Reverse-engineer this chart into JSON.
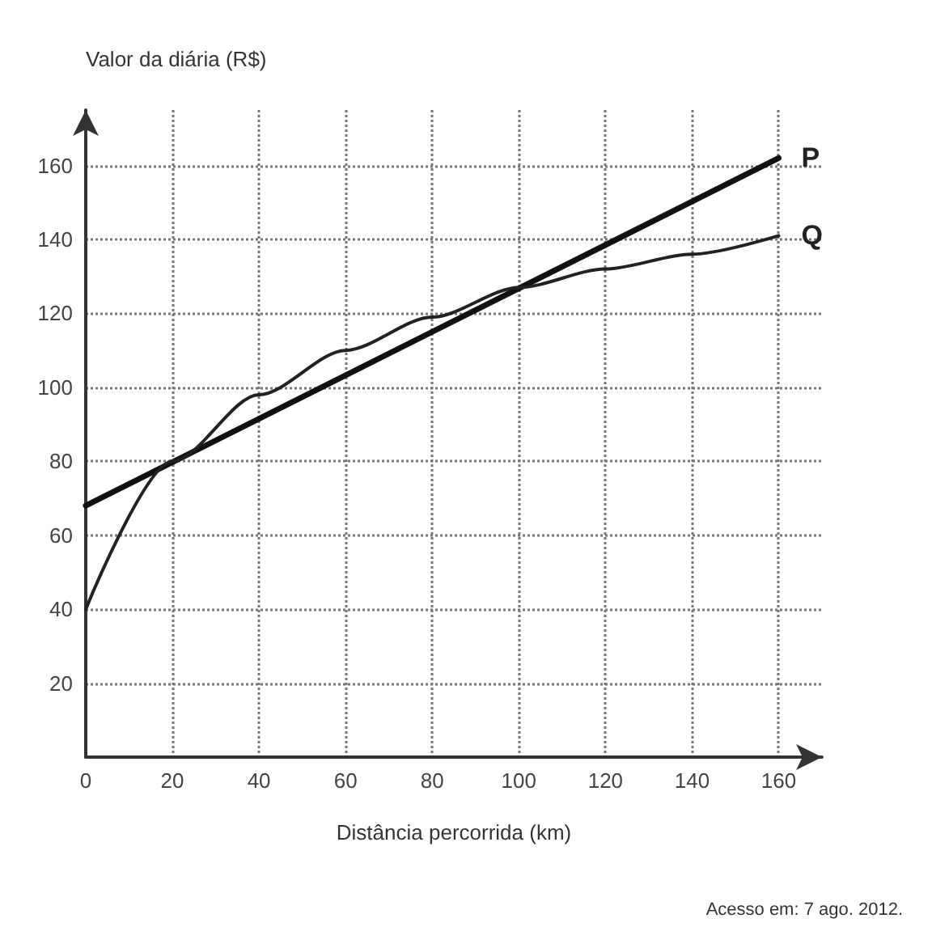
{
  "chart_data": {
    "type": "line",
    "ylabel": "Valor da diária (R$)",
    "xlabel": "Distância percorrida (km)",
    "annotations": [
      "Acesso em: 7 ago. 2012."
    ],
    "x": [
      0,
      20,
      40,
      60,
      80,
      100,
      120,
      140,
      160
    ],
    "series": [
      {
        "name": "P",
        "color": "#111111",
        "x": [
          0,
          160
        ],
        "values": [
          68,
          162
        ]
      },
      {
        "name": "Q",
        "color": "#222222",
        "values": [
          40,
          80,
          98,
          110,
          119,
          127,
          132,
          136,
          141
        ]
      }
    ],
    "xlim": [
      0,
      170
    ],
    "ylim": [
      0,
      175
    ],
    "xticks": [
      0,
      20,
      40,
      60,
      80,
      100,
      120,
      140,
      160
    ],
    "yticks": [
      20,
      40,
      60,
      80,
      100,
      120,
      140,
      160
    ],
    "grid": true,
    "legend": false,
    "marker": "none",
    "line_style": "solid"
  }
}
